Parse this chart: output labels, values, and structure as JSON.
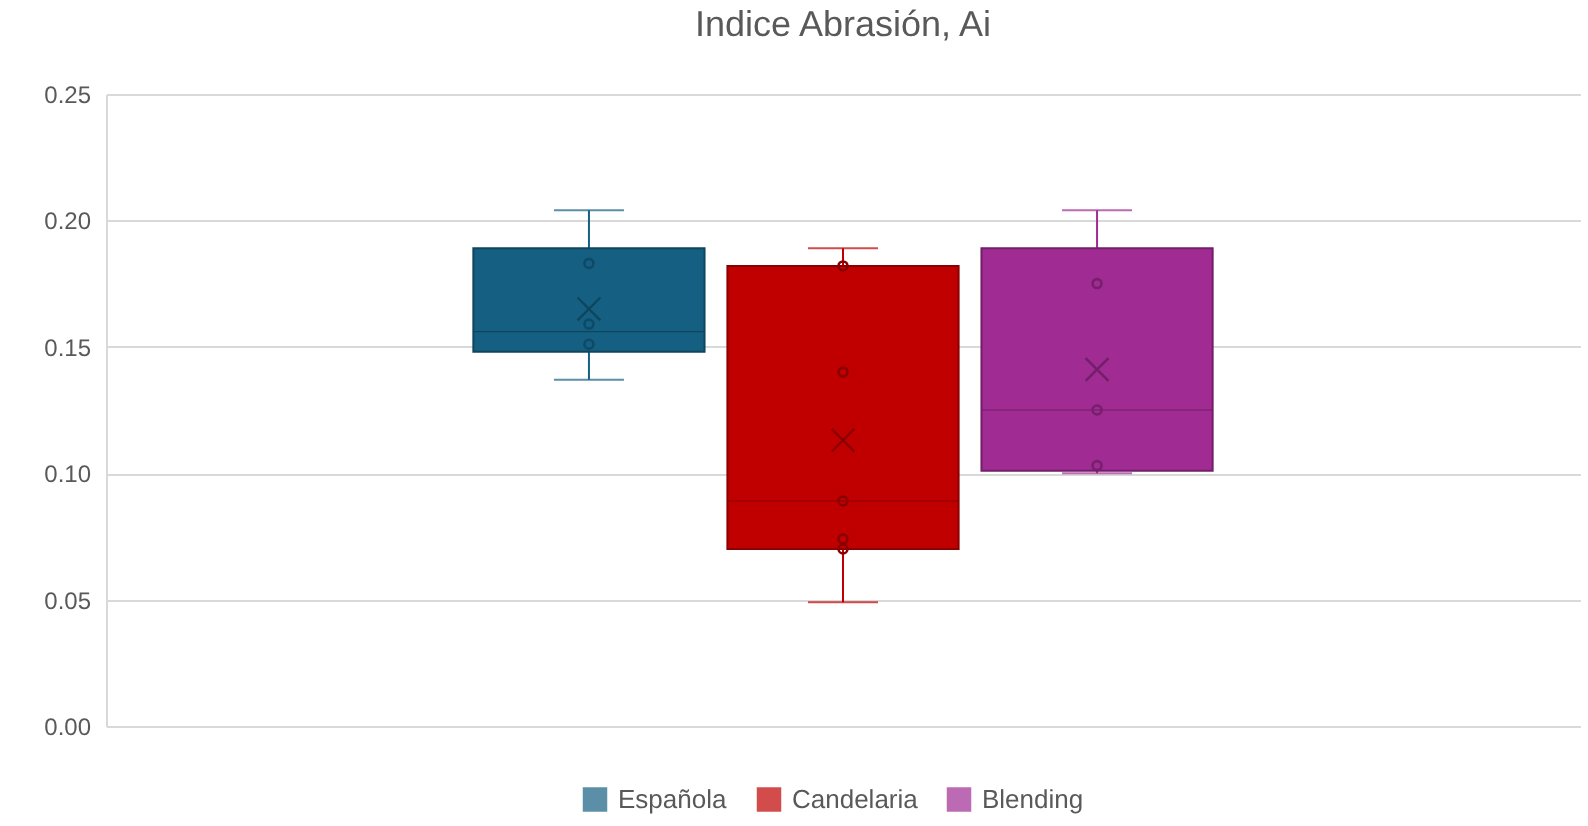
{
  "chart_data": {
    "type": "box",
    "title": "Indice Abrasión, Ai",
    "categories": [
      null
    ],
    "series": [
      {
        "name": "Española",
        "color": "#156082",
        "boxes": [
          {
            "low": 0.137,
            "q1": 0.148,
            "median": 0.156,
            "q3": 0.189,
            "high": 0.204,
            "mean": 0.165
          }
        ]
      },
      {
        "type": "scatter",
        "color": "#0e4a66",
        "marker": "circle",
        "x": [
          null,
          null,
          null
        ],
        "values": [
          0.183,
          0.159,
          0.151
        ]
      },
      {
        "name": "Candelaria",
        "color": "#c00000",
        "boxes": [
          {
            "low": 0.049,
            "q1": 0.07,
            "median": 0.089,
            "q3": 0.182,
            "high": 0.189,
            "mean": 0.113
          }
        ]
      },
      {
        "type": "scatter",
        "color": "#8a0000",
        "marker": "circle",
        "x": [
          null,
          null,
          null,
          null,
          null
        ],
        "values": [
          0.182,
          0.14,
          0.089,
          0.074,
          0.07
        ]
      },
      {
        "name": "Blending",
        "color": "#a02b93",
        "boxes": [
          {
            "low": 0.1,
            "q1": 0.101,
            "median": 0.125,
            "q3": 0.189,
            "high": 0.204,
            "mean": 0.141
          }
        ]
      },
      {
        "type": "scatter",
        "color": "#76206c",
        "marker": "circle",
        "x": [
          null,
          null,
          null
        ],
        "values": [
          0.175,
          0.125,
          0.103
        ]
      }
    ],
    "ylim": [
      0,
      0.25
    ],
    "yticks": [
      {
        "value": 0,
        "label": "0.00"
      },
      {
        "value": 0.05,
        "label": "0.05"
      },
      {
        "value": 0.1,
        "label": "0.10"
      },
      {
        "value": 0.15,
        "label": "0.15"
      },
      {
        "value": 0.2,
        "label": "0.20"
      },
      {
        "value": 0.25,
        "label": "0.25"
      }
    ],
    "grid": "y",
    "legend": "bottom",
    "tick_labels": "y"
  }
}
